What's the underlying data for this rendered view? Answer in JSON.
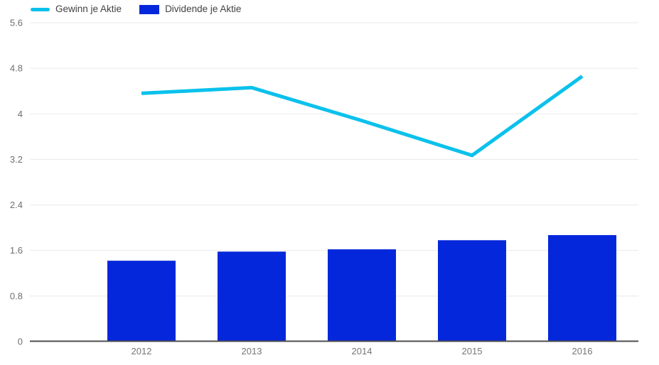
{
  "legend": {
    "items": [
      {
        "label": "Gewinn je Aktie",
        "type": "line",
        "color": "#0bc1ec"
      },
      {
        "label": "Dividende je Aktie",
        "type": "bar",
        "color": "#0527db"
      }
    ]
  },
  "chart_data": {
    "type": "combo",
    "categories": [
      "2012",
      "2013",
      "2014",
      "2015",
      "2016"
    ],
    "series": [
      {
        "name": "Gewinn je Aktie",
        "type": "line",
        "color": "#0bc1ec",
        "values": [
          4.36,
          4.46,
          3.88,
          3.27,
          4.66
        ]
      },
      {
        "name": "Dividende je Aktie",
        "type": "bar",
        "color": "#0527db",
        "values": [
          1.42,
          1.58,
          1.62,
          1.78,
          1.87
        ]
      }
    ],
    "title": "",
    "xlabel": "",
    "ylabel": "",
    "ylim": [
      0,
      5.6
    ],
    "yticks": [
      0,
      0.8,
      1.6,
      2.4,
      3.2,
      4,
      4.8,
      5.6
    ],
    "grid": true,
    "legend_position": "top-left",
    "gridline_color": "#e9e9e9",
    "baseline_color": "#4d4d4d",
    "ytick_label_color": "#6e6e6e",
    "xtick_label_color": "#757575"
  }
}
